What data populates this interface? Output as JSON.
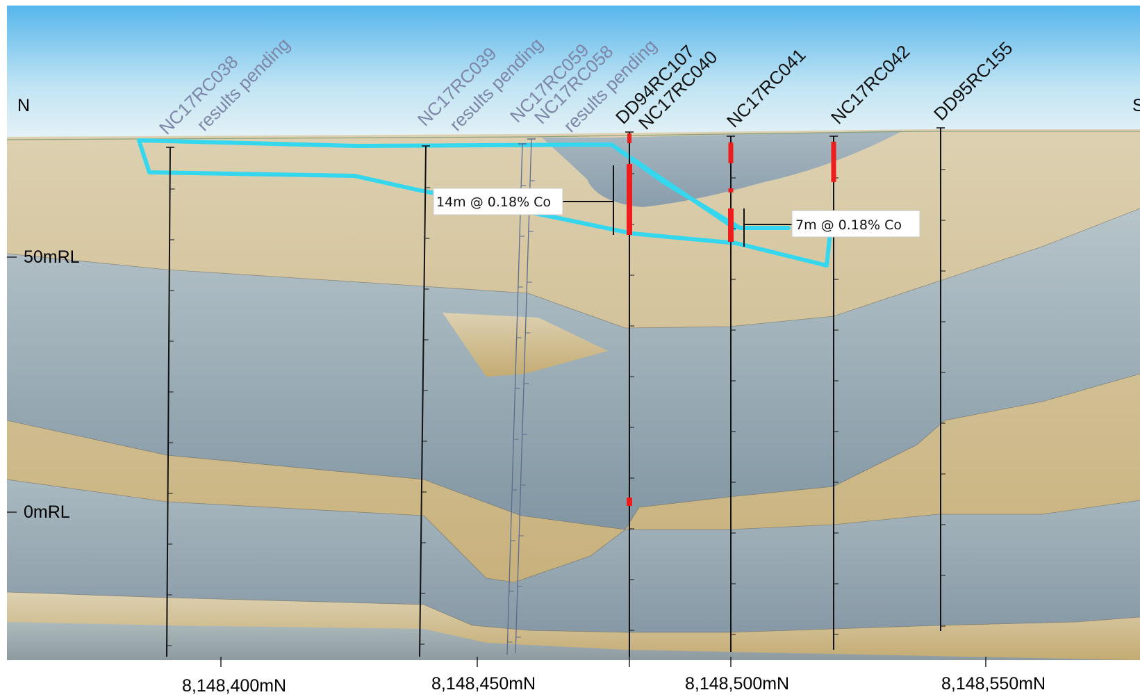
{
  "orientation": {
    "north": "N",
    "south": "S"
  },
  "rl_labels": [
    "50mRL",
    "0mRL"
  ],
  "northing_labels": [
    "8,148,400mN",
    "8,148,450mN",
    "8,148,500mN",
    "8,148,550mN"
  ],
  "drillholes": [
    {
      "id": "NC17RC038",
      "status": "results pending"
    },
    {
      "id": "NC17RC039",
      "status": "results pending"
    },
    {
      "id": "NC17RC059",
      "status": ""
    },
    {
      "id": "NC17RC058",
      "status": "results pending"
    },
    {
      "id": "DD94RC107",
      "status": ""
    },
    {
      "id": "NC17RC040",
      "status": ""
    },
    {
      "id": "NC17RC041",
      "status": ""
    },
    {
      "id": "NC17RC042",
      "status": ""
    },
    {
      "id": "DD95RC155",
      "status": ""
    }
  ],
  "intercepts": [
    {
      "text": "14m @ 0.18% Co",
      "hole": "NC17RC040"
    },
    {
      "text": "7m @ 0.18% Co",
      "hole": "NC17RC041"
    }
  ],
  "colors": {
    "sky_top": "#56b6ec",
    "sky_bottom": "#dff0f6",
    "sediment": "#cdb887",
    "slate": "#8fa3af",
    "mineralised_outline": "#34d7ee",
    "assay_hit": "#ee1c1c",
    "pending_label": "#7d86a7"
  }
}
